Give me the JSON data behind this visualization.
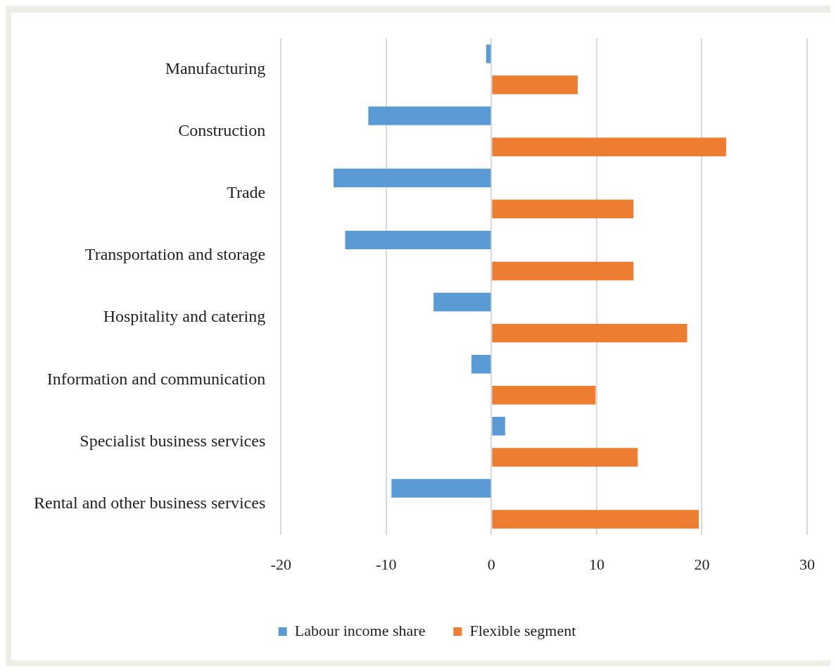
{
  "chart_data": {
    "type": "bar",
    "orientation": "horizontal",
    "categories": [
      "Manufacturing",
      "Construction",
      "Trade",
      "Transportation and storage",
      "Hospitality and catering",
      "Information and communication",
      "Specialist business services",
      "Rental and other business services"
    ],
    "series": [
      {
        "name": "Labour income share",
        "color": "#5b9bd5",
        "values": [
          -0.5,
          -11.7,
          -15.0,
          -13.9,
          -5.5,
          -1.9,
          1.3,
          -9.5
        ]
      },
      {
        "name": "Flexible segment",
        "color": "#ed7d31",
        "values": [
          8.2,
          22.3,
          13.5,
          13.5,
          18.6,
          9.9,
          13.9,
          19.7
        ]
      }
    ],
    "xlim": [
      -20,
      30
    ],
    "xticks": [
      -20,
      -10,
      0,
      10,
      20,
      30
    ],
    "grid": "x",
    "legend": "bottom"
  }
}
